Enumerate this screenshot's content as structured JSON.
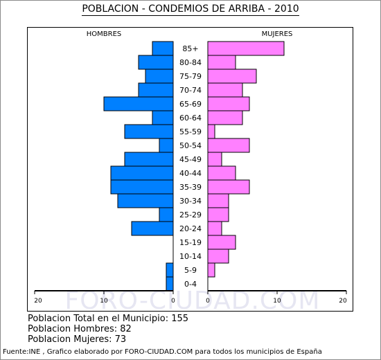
{
  "title": "POBLACION - CONDEMIOS DE ARRIBA - 2010",
  "watermark": "FORO-CIUDAD.COM",
  "summary": {
    "total": "Poblacion Total en el Municipio: 155",
    "hombres": "Poblacion Hombres: 82",
    "mujeres": "Poblacion Mujeres: 73"
  },
  "footer": "Fuente:INE , Grafico elaborado por FORO-CIUDAD.COM para todos los municipios de España",
  "chart_data": {
    "type": "bar",
    "orientation": "horizontal-pyramid",
    "title": "POBLACION - CONDEMIOS DE ARRIBA - 2010",
    "left_label": "HOMBRES",
    "right_label": "MUJERES",
    "categories": [
      "85+",
      "80-84",
      "75-79",
      "70-74",
      "65-69",
      "60-64",
      "55-59",
      "50-54",
      "45-49",
      "40-44",
      "35-39",
      "30-34",
      "25-29",
      "20-24",
      "15-19",
      "10-14",
      "5-9",
      "0-4"
    ],
    "series": [
      {
        "name": "HOMBRES",
        "color": "#0080ff",
        "values": [
          3,
          5,
          4,
          5,
          10,
          3,
          7,
          2,
          7,
          9,
          9,
          8,
          2,
          6,
          0,
          0,
          1,
          1
        ]
      },
      {
        "name": "MUJERES",
        "color": "#ff80ff",
        "values": [
          11,
          4,
          7,
          5,
          6,
          5,
          1,
          6,
          2,
          4,
          6,
          3,
          3,
          2,
          4,
          3,
          1,
          0
        ]
      }
    ],
    "x_ticks_left": [
      "20",
      "10",
      "0"
    ],
    "x_ticks_right": [
      "0",
      "10",
      "20"
    ],
    "xlim": [
      0,
      20
    ]
  }
}
